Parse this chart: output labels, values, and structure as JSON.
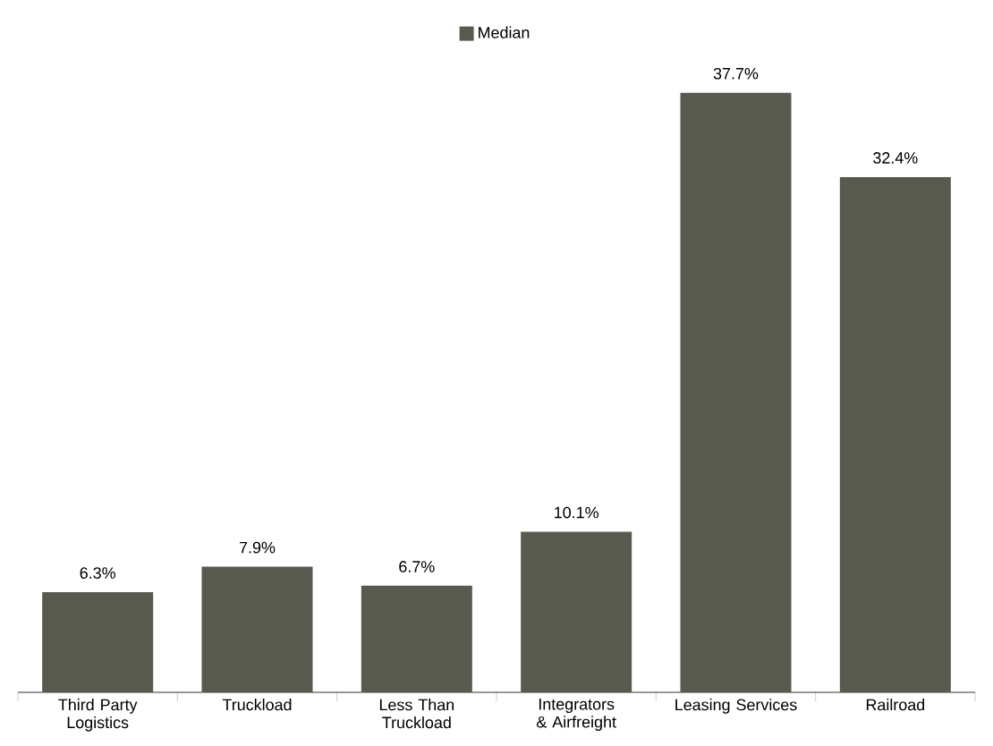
{
  "chart_data": {
    "type": "bar",
    "categories": [
      "Third Party Logistics",
      "Truckload",
      "Less Than Truckload",
      "Integrators & Airfreight",
      "Leasing Services",
      "Railroad"
    ],
    "series": [
      {
        "name": "Median",
        "color": "#595a4f",
        "values": [
          6.3,
          7.9,
          6.7,
          10.1,
          37.7,
          32.4
        ],
        "value_labels": [
          "6.3%",
          "7.9%",
          "6.7%",
          "10.1%",
          "37.7%",
          "32.4%"
        ]
      }
    ],
    "legend": "top"
  }
}
